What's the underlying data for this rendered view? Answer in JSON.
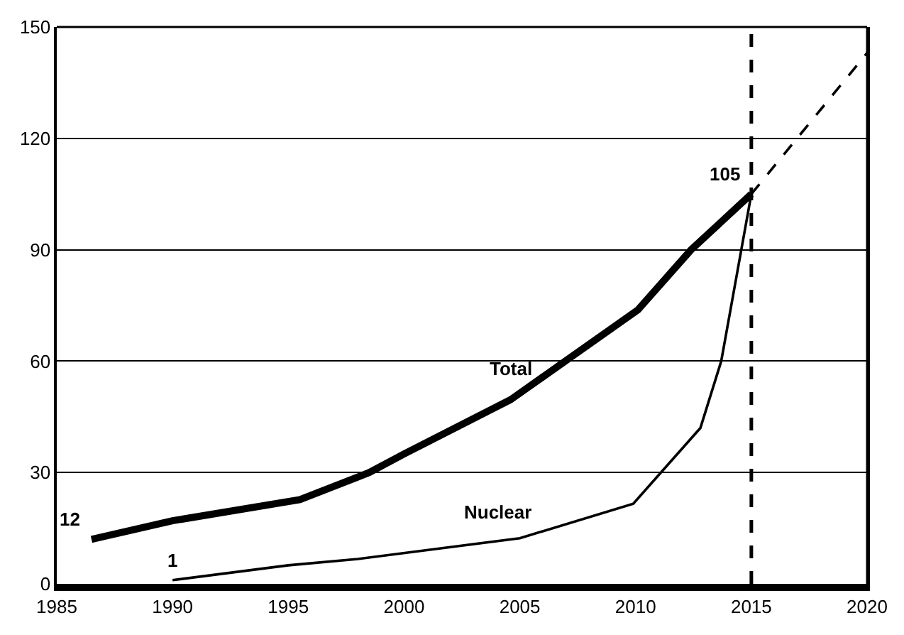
{
  "chart_data": {
    "type": "line",
    "series": [
      {
        "name": "Total",
        "color": "#000000",
        "x": [
          1986.5,
          1990,
          1995.5,
          1998.5,
          2000,
          2004.6,
          2010.1,
          2012.4,
          2015
        ],
        "values": [
          12,
          17,
          22.7,
          30,
          35,
          49.6,
          73.8,
          90,
          105
        ]
      },
      {
        "name": "Nuclear",
        "color": "#000000",
        "x": [
          1990,
          1995,
          1998,
          2005,
          2009.9,
          2012.8,
          2013.7,
          2015
        ],
        "values": [
          1,
          5,
          6.7,
          12.3,
          21.6,
          42,
          60,
          105
        ]
      },
      {
        "color": "#000000",
        "line_style": "dashed",
        "x": [
          2015,
          2020
        ],
        "values": [
          105,
          143
        ]
      }
    ],
    "annotations": [
      {
        "text": "12",
        "x": 1986.5,
        "y": 12
      },
      {
        "text": "1",
        "x": 1990,
        "y": 1
      },
      {
        "text": "105",
        "x": 2015,
        "y": 105
      }
    ],
    "ref_lines": [
      {
        "axis": "x",
        "value": 2015,
        "line_style": "dashed",
        "color": "#000000"
      }
    ],
    "xlim": [
      1985,
      2020
    ],
    "xticks": [
      1985,
      1990,
      1995,
      2000,
      2005,
      2010,
      2015,
      2020
    ],
    "ylim": [
      0,
      150
    ],
    "yticks": [
      0,
      30,
      60,
      90,
      120,
      150
    ],
    "grid": "y",
    "legend": false,
    "marker": "none",
    "line_style": "solid"
  }
}
